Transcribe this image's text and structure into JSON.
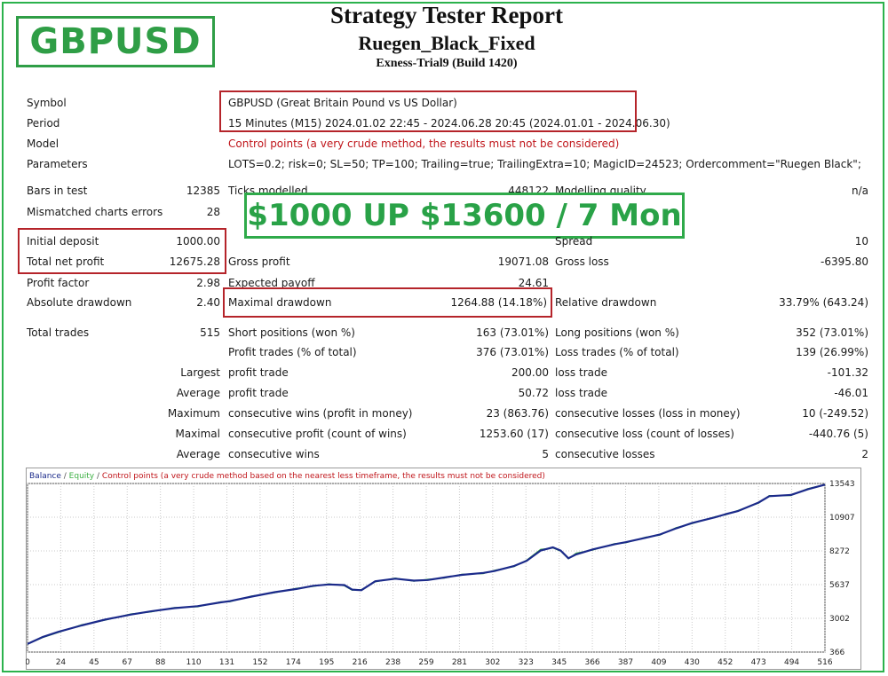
{
  "badge": "GBPUSD",
  "header": {
    "title": "Strategy Tester Report",
    "ea_name": "Ruegen_Black_Fixed",
    "build": "Exness-Trial9 (Build 1420)"
  },
  "promo": "$1000 UP $13600 / 7 Mon",
  "info": {
    "symbol_label": "Symbol",
    "symbol_value": "GBPUSD (Great Britain Pound vs US Dollar)",
    "period_label": "Period",
    "period_value": "15 Minutes (M15) 2024.01.02 22:45 - 2024.06.28 20:45 (2024.01.01 - 2024.06.30)",
    "model_label": "Model",
    "model_value": "Control points (a very crude method, the results must not be considered)",
    "parameters_label": "Parameters",
    "parameters_value": "LOTS=0.2; risk=0; SL=50; TP=100; Trailing=true; TrailingExtra=10; MagicID=24523; Ordercomment=\"Ruegen Black\";"
  },
  "stats": {
    "bars_label": "Bars in test",
    "bars_value": "12385",
    "ticks_label": "Ticks modelled",
    "ticks_value": "448122",
    "quality_label": "Modelling quality",
    "quality_value": "n/a",
    "mismatch_label": "Mismatched charts errors",
    "mismatch_value": "28",
    "spread_label": "Spread",
    "spread_value": "10",
    "deposit_label": "Initial deposit",
    "deposit_value": "1000.00",
    "netprofit_label": "Total net profit",
    "netprofit_value": "12675.28",
    "grossprofit_label": "Gross profit",
    "grossprofit_value": "19071.08",
    "grossloss_label": "Gross loss",
    "grossloss_value": "-6395.80",
    "pf_label": "Profit factor",
    "pf_value": "2.98",
    "ep_label": "Expected payoff",
    "ep_value": "24.61",
    "absdd_label": "Absolute drawdown",
    "absdd_value": "2.40",
    "maxdd_label": "Maximal drawdown",
    "maxdd_value": "1264.88 (14.18%)",
    "reldd_label": "Relative drawdown",
    "reldd_value": "33.79% (643.24)",
    "trades_label": "Total trades",
    "trades_value": "515",
    "short_label": "Short positions (won %)",
    "short_value": "163 (73.01%)",
    "long_label": "Long positions (won %)",
    "long_value": "352 (73.01%)",
    "ptrades_label": "Profit trades (% of total)",
    "ptrades_value": "376 (73.01%)",
    "ltrades_label": "Loss trades (% of total)",
    "ltrades_value": "139 (26.99%)",
    "largest_label": "Largest",
    "largest_p_label": "profit trade",
    "largest_p_value": "200.00",
    "largest_l_label": "loss trade",
    "largest_l_value": "-101.32",
    "average_label": "Average",
    "average_p_label": "profit trade",
    "average_p_value": "50.72",
    "average_l_label": "loss trade",
    "average_l_value": "-46.01",
    "maximum_label": "Maximum",
    "maximum_w_label": "consecutive wins (profit in money)",
    "maximum_w_value": "23 (863.76)",
    "maximum_l_label": "consecutive losses (loss in money)",
    "maximum_l_value": "10 (-249.52)",
    "maximal_label": "Maximal",
    "maximal_p_label": "consecutive profit (count of wins)",
    "maximal_p_value": "1253.60 (17)",
    "maximal_l_label": "consecutive loss (count of losses)",
    "maximal_l_value": "-440.76 (5)",
    "avg2_label": "Average",
    "avg2_w_label": "consecutive wins",
    "avg2_w_value": "5",
    "avg2_l_label": "consecutive losses",
    "avg2_l_value": "2"
  },
  "chart_data": {
    "type": "line",
    "legend": {
      "balance": "Balance",
      "sep1": " / ",
      "equity": "Equity",
      "sep2": " / ",
      "control": "Control points (a very crude method based on the nearest less timeframe, the results must not be considered)"
    },
    "colors": {
      "balance": "#1b2a8a",
      "equity": "#3cb043",
      "control": "#c0161b"
    },
    "x_ticks": [
      "0",
      "24",
      "45",
      "67",
      "88",
      "110",
      "131",
      "152",
      "174",
      "195",
      "216",
      "238",
      "259",
      "281",
      "302",
      "323",
      "345",
      "366",
      "387",
      "409",
      "430",
      "452",
      "473",
      "494",
      "516"
    ],
    "y_ticks": [
      "13543",
      "10907",
      "8272",
      "5637",
      "3002",
      "366"
    ],
    "xlim": [
      0,
      516
    ],
    "ylim": [
      366,
      13543
    ],
    "series": [
      {
        "name": "Balance",
        "points": [
          [
            0,
            1000
          ],
          [
            10,
            1550
          ],
          [
            20,
            1950
          ],
          [
            35,
            2450
          ],
          [
            50,
            2900
          ],
          [
            67,
            3300
          ],
          [
            80,
            3550
          ],
          [
            95,
            3800
          ],
          [
            110,
            3950
          ],
          [
            125,
            4250
          ],
          [
            131,
            4350
          ],
          [
            145,
            4700
          ],
          [
            160,
            5050
          ],
          [
            174,
            5300
          ],
          [
            185,
            5550
          ],
          [
            195,
            5650
          ],
          [
            205,
            5600
          ],
          [
            210,
            5250
          ],
          [
            216,
            5200
          ],
          [
            225,
            5900
          ],
          [
            238,
            6100
          ],
          [
            250,
            5950
          ],
          [
            259,
            6000
          ],
          [
            270,
            6200
          ],
          [
            281,
            6400
          ],
          [
            295,
            6550
          ],
          [
            302,
            6700
          ],
          [
            315,
            7100
          ],
          [
            323,
            7500
          ],
          [
            332,
            8300
          ],
          [
            340,
            8550
          ],
          [
            345,
            8300
          ],
          [
            350,
            7700
          ],
          [
            355,
            8000
          ],
          [
            366,
            8400
          ],
          [
            380,
            8800
          ],
          [
            387,
            8950
          ],
          [
            400,
            9300
          ],
          [
            409,
            9550
          ],
          [
            420,
            10050
          ],
          [
            430,
            10450
          ],
          [
            445,
            10900
          ],
          [
            452,
            11150
          ],
          [
            460,
            11400
          ],
          [
            473,
            12050
          ],
          [
            480,
            12550
          ],
          [
            494,
            12650
          ],
          [
            505,
            13100
          ],
          [
            516,
            13450
          ]
        ]
      },
      {
        "name": "Equity",
        "points": [
          [
            0,
            1000
          ],
          [
            10,
            1500
          ],
          [
            20,
            1900
          ],
          [
            35,
            2500
          ],
          [
            50,
            2850
          ],
          [
            67,
            3350
          ],
          [
            80,
            3500
          ],
          [
            95,
            3850
          ],
          [
            110,
            3900
          ],
          [
            125,
            4300
          ],
          [
            131,
            4300
          ],
          [
            145,
            4750
          ],
          [
            160,
            5000
          ],
          [
            174,
            5350
          ],
          [
            185,
            5500
          ],
          [
            195,
            5700
          ],
          [
            205,
            5550
          ],
          [
            210,
            5200
          ],
          [
            216,
            5250
          ],
          [
            225,
            5850
          ],
          [
            238,
            6150
          ],
          [
            250,
            5900
          ],
          [
            259,
            6050
          ],
          [
            270,
            6150
          ],
          [
            281,
            6450
          ],
          [
            295,
            6500
          ],
          [
            302,
            6750
          ],
          [
            315,
            7050
          ],
          [
            323,
            7550
          ],
          [
            332,
            8400
          ],
          [
            340,
            8500
          ],
          [
            345,
            8250
          ],
          [
            350,
            7650
          ],
          [
            355,
            8100
          ],
          [
            366,
            8350
          ],
          [
            380,
            8850
          ],
          [
            387,
            8900
          ],
          [
            400,
            9350
          ],
          [
            409,
            9500
          ],
          [
            420,
            10100
          ],
          [
            430,
            10400
          ],
          [
            445,
            10950
          ],
          [
            452,
            11100
          ],
          [
            460,
            11450
          ],
          [
            473,
            12000
          ],
          [
            480,
            12600
          ],
          [
            494,
            12600
          ],
          [
            505,
            13150
          ],
          [
            516,
            13450
          ]
        ]
      }
    ]
  }
}
